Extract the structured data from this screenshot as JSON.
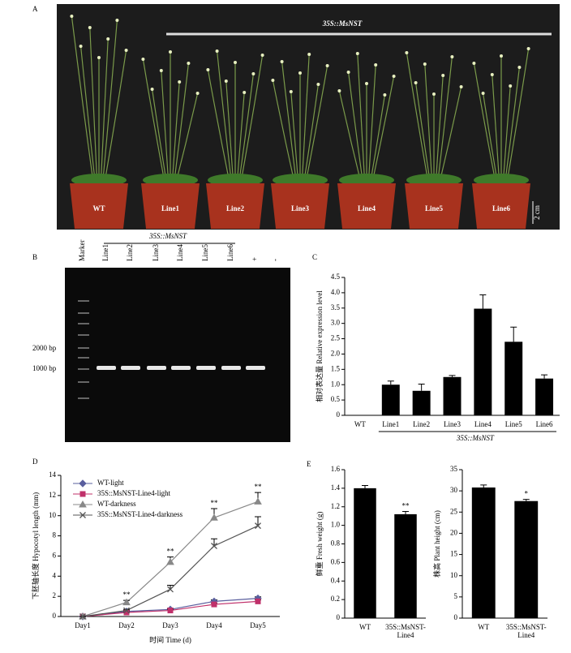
{
  "panels": {
    "A": {
      "label": "A",
      "title": "35S::MsNST",
      "pots": [
        "WT",
        "Line1",
        "Line2",
        "Line3",
        "Line4",
        "Line5",
        "Line6"
      ],
      "scale": "2 cm"
    },
    "B": {
      "label": "B",
      "group": "35S::MsNST",
      "lanes": [
        "Marker",
        "Line1",
        "Line2",
        "Line3",
        "Line4",
        "Line5",
        "Line6",
        "+",
        "-"
      ],
      "markers": [
        "2000 bp",
        "1000 bp"
      ]
    },
    "C": {
      "label": "C"
    },
    "D": {
      "label": "D"
    },
    "E": {
      "label": "E"
    }
  },
  "chart_data": [
    {
      "type": "bar",
      "y_label": "相对表达量 Relative expression level",
      "group_label": "35S::MsNST",
      "categories": [
        "WT",
        "Line1",
        "Line2",
        "Line3",
        "Line4",
        "Line5",
        "Line6"
      ],
      "values": [
        0,
        1.0,
        0.8,
        1.25,
        3.48,
        2.4,
        1.2
      ],
      "errors": [
        0,
        0.12,
        0.22,
        0.05,
        0.45,
        0.48,
        0.12
      ],
      "color": "#000000",
      "ylim": [
        0,
        4.5
      ],
      "yticks": [
        0,
        0.5,
        {
          "value": 1,
          "label": "1.0"
        },
        1.5,
        {
          "value": 2,
          "label": "2.0"
        },
        2.5,
        {
          "value": 3,
          "label": "3.0"
        },
        3.5,
        {
          "value": 4,
          "label": "4.0"
        },
        4.5
      ]
    },
    {
      "type": "line",
      "x_label": "时间 Time (d)",
      "y_label": "下胚轴长度 Hypocotyl length (mm)",
      "categories": [
        "Day1",
        "Day2",
        "Day3",
        "Day4",
        "Day5"
      ],
      "ylim": [
        0,
        14
      ],
      "yticks": [
        0,
        2,
        4,
        6,
        8,
        10,
        12,
        14
      ],
      "annotations": [
        null,
        "**",
        "**",
        "**",
        "**"
      ],
      "legend": "top-left",
      "series": [
        {
          "name": "WT-light",
          "color": "#5a5f9e",
          "marker": "diamond",
          "values": [
            0,
            0.5,
            0.7,
            1.5,
            1.8
          ],
          "errors": [
            0,
            0.1,
            0.1,
            0.15,
            0.15
          ]
        },
        {
          "name": "35S::MsNST-Line4-light",
          "color": "#c0306a",
          "marker": "square",
          "values": [
            0,
            0.4,
            0.6,
            1.2,
            1.5
          ],
          "errors": [
            0,
            0.08,
            0.1,
            0.12,
            0.15
          ]
        },
        {
          "name": "WT-darkness",
          "color": "#888888",
          "marker": "triangle",
          "values": [
            0,
            1.4,
            5.4,
            9.8,
            11.4
          ],
          "errors": [
            0,
            0.2,
            0.5,
            0.9,
            0.9
          ]
        },
        {
          "name": "35S::MsNST-Line4-darkness",
          "color": "#555555",
          "marker": "x",
          "values": [
            0,
            0.6,
            2.7,
            7.0,
            9.0
          ],
          "errors": [
            0,
            0.1,
            0.4,
            0.7,
            0.9
          ]
        }
      ]
    },
    {
      "type": "bar",
      "y_label": "鲜重 Fresh weight (g)",
      "categories": [
        "WT",
        "35S::MsNST-Line4"
      ],
      "values": [
        1.4,
        1.12
      ],
      "errors": [
        0.03,
        0.03
      ],
      "color": "#000000",
      "ylim": [
        0,
        1.6
      ],
      "yticks": [
        0,
        0.2,
        0.4,
        0.6,
        0.8,
        {
          "value": 1,
          "label": "1.0"
        },
        1.2,
        1.4,
        1.6
      ],
      "annotations": [
        null,
        "**"
      ]
    },
    {
      "type": "bar",
      "y_label": "株高 Plant height (cm)",
      "categories": [
        "WT",
        "35S::MsNST-Line4"
      ],
      "values": [
        30.8,
        27.6
      ],
      "errors": [
        0.6,
        0.4
      ],
      "color": "#000000",
      "ylim": [
        0,
        35
      ],
      "yticks": [
        0,
        5,
        10,
        15,
        20,
        25,
        30,
        35
      ],
      "annotations": [
        null,
        "*"
      ]
    }
  ]
}
